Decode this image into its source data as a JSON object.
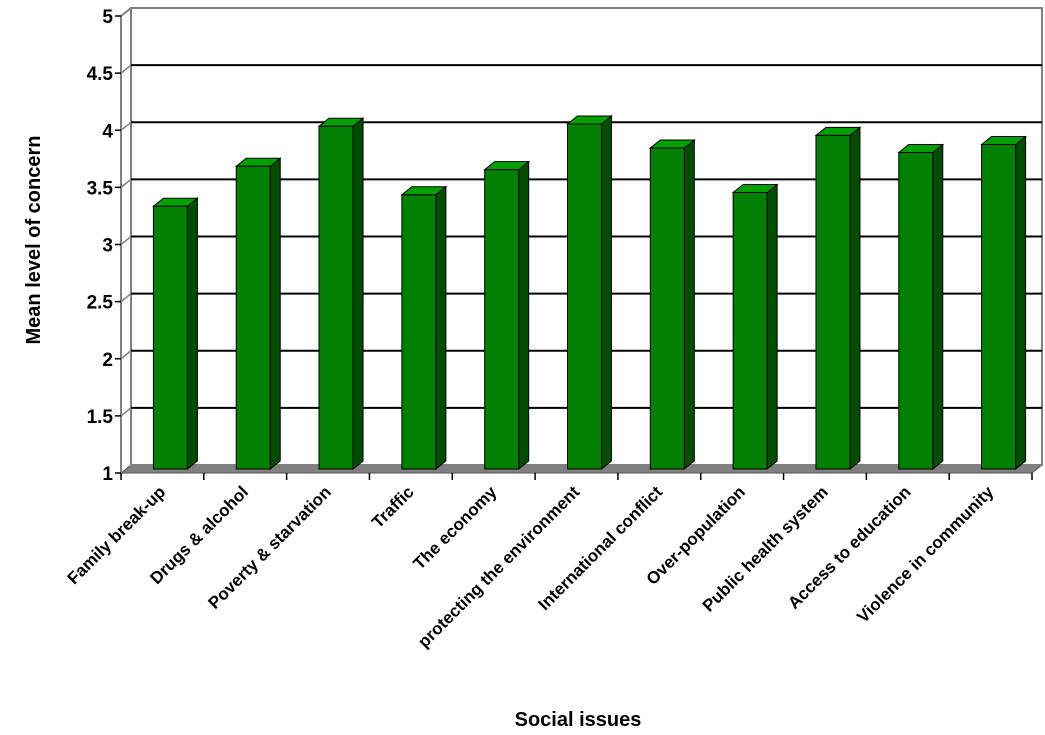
{
  "chart_data": {
    "type": "bar",
    "title": "",
    "xlabel": "Social issues",
    "ylabel": "Mean level of concern",
    "ylim": [
      1,
      5
    ],
    "yticks": [
      1,
      1.5,
      2,
      2.5,
      3,
      3.5,
      4,
      4.5,
      5
    ],
    "ytick_labels": [
      "1",
      "1.5",
      "2",
      "2.5",
      "3",
      "3.5",
      "4",
      "4.5",
      "5"
    ],
    "grid": true,
    "legend": "none",
    "style": "3d",
    "categories": [
      "Family break-up",
      "Drugs & alcohol",
      "Poverty & starvation",
      "Traffic",
      "The economy",
      "protecting the environment",
      "International conflict",
      "Over-population",
      "Public health system",
      "Access to education",
      "Violence in community"
    ],
    "values": [
      3.3,
      3.65,
      4.0,
      3.4,
      3.62,
      4.02,
      3.81,
      3.42,
      3.92,
      3.77,
      3.84
    ],
    "colors": {
      "bar_front": "#008000",
      "bar_top": "#00a000",
      "bar_side": "#004d00",
      "floor": "#808080",
      "wall_line": "#808080",
      "grid": "#000000"
    }
  }
}
